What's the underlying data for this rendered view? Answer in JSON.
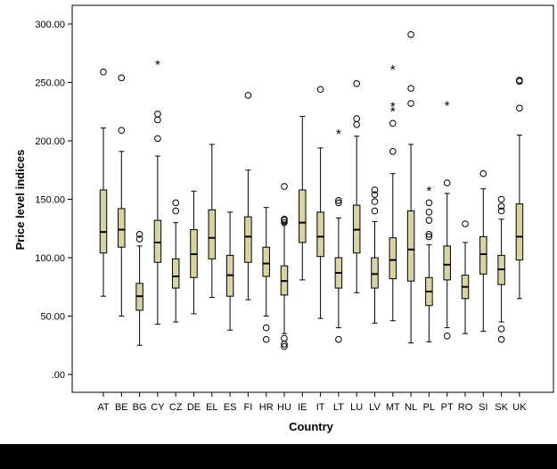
{
  "chart_data": {
    "type": "boxplot",
    "xlabel": "Country",
    "ylabel": "Price level indices",
    "ylim": [
      0,
      300
    ],
    "yticks": [
      0,
      50,
      100,
      150,
      200,
      250,
      300
    ],
    "ytick_labels": [
      ".00",
      "50.00",
      "100.00",
      "150.00",
      "200.00",
      "250.00",
      "300.00"
    ],
    "grid": false,
    "colors": {
      "box_fill": "#d8d3a6",
      "box_stroke": "#000000",
      "frame": "#000000",
      "background": "#ffffff",
      "footer": "#000000"
    },
    "boxes": [
      {
        "category": "AT",
        "whisker_low": 67,
        "q1": 104,
        "median": 122,
        "q3": 158,
        "whisker_high": 211,
        "outliers": [
          259
        ],
        "extremes": []
      },
      {
        "category": "BE",
        "whisker_low": 50,
        "q1": 109,
        "median": 124,
        "q3": 142,
        "whisker_high": 191,
        "outliers": [
          209,
          254
        ],
        "extremes": []
      },
      {
        "category": "BG",
        "whisker_low": 25,
        "q1": 55,
        "median": 67,
        "q3": 78,
        "whisker_high": 110,
        "outliers": [
          116,
          120
        ],
        "extremes": []
      },
      {
        "category": "CY",
        "whisker_low": 43,
        "q1": 96,
        "median": 113,
        "q3": 132,
        "whisker_high": 187,
        "outliers": [
          202,
          218,
          223
        ],
        "extremes": [
          266
        ]
      },
      {
        "category": "CZ",
        "whisker_low": 45,
        "q1": 74,
        "median": 84,
        "q3": 99,
        "whisker_high": 130,
        "outliers": [
          140,
          147
        ],
        "extremes": []
      },
      {
        "category": "DE",
        "whisker_low": 52,
        "q1": 83,
        "median": 103,
        "q3": 124,
        "whisker_high": 157,
        "outliers": [],
        "extremes": []
      },
      {
        "category": "EL",
        "whisker_low": 66,
        "q1": 99,
        "median": 117,
        "q3": 141,
        "whisker_high": 197,
        "outliers": [],
        "extremes": []
      },
      {
        "category": "ES",
        "whisker_low": 38,
        "q1": 67,
        "median": 85,
        "q3": 102,
        "whisker_high": 139,
        "outliers": [],
        "extremes": []
      },
      {
        "category": "FI",
        "whisker_low": 64,
        "q1": 96,
        "median": 118,
        "q3": 135,
        "whisker_high": 175,
        "outliers": [
          239
        ],
        "extremes": []
      },
      {
        "category": "HR",
        "whisker_low": 50,
        "q1": 84,
        "median": 95,
        "q3": 109,
        "whisker_high": 143,
        "outliers": [
          30,
          40
        ],
        "extremes": []
      },
      {
        "category": "HU",
        "whisker_low": 35,
        "q1": 68,
        "median": 80,
        "q3": 93,
        "whisker_high": 129,
        "outliers": [
          24,
          26,
          31,
          130,
          132,
          133,
          161
        ],
        "extremes": []
      },
      {
        "category": "IE",
        "whisker_low": 81,
        "q1": 113,
        "median": 130,
        "q3": 158,
        "whisker_high": 221,
        "outliers": [],
        "extremes": []
      },
      {
        "category": "IT",
        "whisker_low": 48,
        "q1": 101,
        "median": 118,
        "q3": 139,
        "whisker_high": 194,
        "outliers": [
          244
        ],
        "extremes": []
      },
      {
        "category": "LT",
        "whisker_low": 40,
        "q1": 74,
        "median": 87,
        "q3": 100,
        "whisker_high": 134,
        "outliers": [
          30,
          147,
          149
        ],
        "extremes": [
          207
        ]
      },
      {
        "category": "LU",
        "whisker_low": 70,
        "q1": 104,
        "median": 124,
        "q3": 145,
        "whisker_high": 204,
        "outliers": [
          214,
          219,
          249
        ],
        "extremes": []
      },
      {
        "category": "LV",
        "whisker_low": 44,
        "q1": 74,
        "median": 86,
        "q3": 100,
        "whisker_high": 131,
        "outliers": [
          140,
          148,
          154,
          158
        ],
        "extremes": []
      },
      {
        "category": "MT",
        "whisker_low": 46,
        "q1": 82,
        "median": 98,
        "q3": 117,
        "whisker_high": 172,
        "outliers": [
          191,
          215
        ],
        "extremes": [
          226,
          230,
          262
        ]
      },
      {
        "category": "NL",
        "whisker_low": 27,
        "q1": 80,
        "median": 107,
        "q3": 140,
        "whisker_high": 197,
        "outliers": [
          232,
          245,
          291
        ],
        "extremes": []
      },
      {
        "category": "PL",
        "whisker_low": 28,
        "q1": 59,
        "median": 71,
        "q3": 83,
        "whisker_high": 111,
        "outliers": [
          118,
          120,
          132,
          139,
          147
        ],
        "extremes": [
          158
        ]
      },
      {
        "category": "PT",
        "whisker_low": 40,
        "q1": 81,
        "median": 94,
        "q3": 110,
        "whisker_high": 155,
        "outliers": [
          33,
          164
        ],
        "extremes": [
          231
        ]
      },
      {
        "category": "RO",
        "whisker_low": 35,
        "q1": 65,
        "median": 75,
        "q3": 85,
        "whisker_high": 113,
        "outliers": [
          129
        ],
        "extremes": []
      },
      {
        "category": "SI",
        "whisker_low": 37,
        "q1": 86,
        "median": 103,
        "q3": 118,
        "whisker_high": 159,
        "outliers": [
          172
        ],
        "extremes": []
      },
      {
        "category": "SK",
        "whisker_low": 45,
        "q1": 77,
        "median": 90,
        "q3": 102,
        "whisker_high": 133,
        "outliers": [
          30,
          39,
          140,
          144,
          150
        ],
        "extremes": []
      },
      {
        "category": "UK",
        "whisker_low": 65,
        "q1": 98,
        "median": 118,
        "q3": 146,
        "whisker_high": 205,
        "outliers": [
          228,
          251,
          252
        ],
        "extremes": []
      }
    ]
  }
}
